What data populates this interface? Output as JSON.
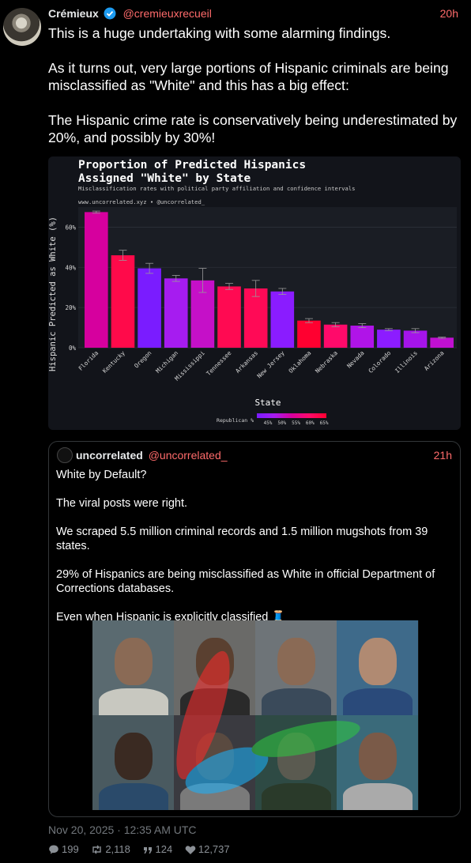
{
  "post": {
    "author_name": "Crémieux",
    "author_handle": "@cremieuxrecueil",
    "time": "20h",
    "paragraphs": [
      "This is a huge undertaking with some alarming findings.",
      "As it turns out, very large portions of Hispanic criminals are being misclassified as \"White\" and this has a big effect:",
      "The Hispanic crime rate is conservatively being underestimated by 20%, and possibly by 30%!"
    ],
    "date": "Nov 20, 2025 · 12:35 AM UTC"
  },
  "chart_data": {
    "type": "bar",
    "title_line1": "Proportion of Predicted Hispanics",
    "title_line2": "Assigned \"White\" by State",
    "subtitle": "Misclassification rates with political party affiliation and confidence intervals",
    "source": "www.uncorrelated.xyz • @uncorrelated_",
    "xlabel": "State",
    "ylabel": "Hispanic Predicted as White (%)",
    "ylim": [
      0,
      70
    ],
    "yticks": [
      "0%",
      "20%",
      "40%",
      "60%"
    ],
    "ytick_values": [
      0,
      20,
      40,
      60
    ],
    "categories": [
      "Florida",
      "Kentucky",
      "Oregon",
      "Michigan",
      "Mississippi",
      "Tennessee",
      "Arkansas",
      "New Jersey",
      "Oklahoma",
      "Nebraska",
      "Nevada",
      "Colorado",
      "Illinois",
      "Arizona"
    ],
    "values": [
      67.5,
      46,
      39.5,
      34.5,
      33.5,
      30.5,
      29.5,
      28,
      13.5,
      11.5,
      11,
      9,
      8.5,
      5
    ],
    "errors": [
      0.5,
      2.5,
      2.5,
      1.5,
      6,
      1.5,
      4,
      1.5,
      1,
      1,
      1,
      0.5,
      1,
      0.3
    ],
    "colors": [
      "#d6009e",
      "#ff0a4a",
      "#7a1cff",
      "#a61cf0",
      "#c510c8",
      "#ff0a52",
      "#ff0a56",
      "#8a1cff",
      "#ff0030",
      "#ff0a6a",
      "#b014e8",
      "#8c1cff",
      "#a514ea",
      "#c010d0"
    ],
    "legend_label": "Republican %",
    "legend_ticks": [
      "45%",
      "50%",
      "55%",
      "60%",
      "65%"
    ],
    "legend_colors": [
      "#7a1cff",
      "#a61cf0",
      "#d6009e",
      "#ff0a6a",
      "#ff0030"
    ],
    "grid": true
  },
  "quote": {
    "author_name": "uncorrelated",
    "author_handle": "@uncorrelated_",
    "time": "21h",
    "paragraphs": [
      "White by Default?",
      "The viral posts were right.",
      "We scraped 5.5 million criminal records and 1.5 million mugshots from 39 states.",
      "29% of Hispanics are being misclassified as White in official Department of Corrections databases.",
      "Even when Hispanic is explicitly classified 🧵"
    ]
  },
  "stats": {
    "replies": "199",
    "reposts": "2,118",
    "quotes": "124",
    "likes": "12,737"
  },
  "icons": {
    "verified": "verified-badge-icon",
    "reply": "reply-icon",
    "repost": "repost-icon",
    "quote": "quote-icon",
    "like": "heart-icon"
  },
  "colors": {
    "handle": "#ff6b6b",
    "verified": "#1d9bf0",
    "muted": "#71767b"
  }
}
